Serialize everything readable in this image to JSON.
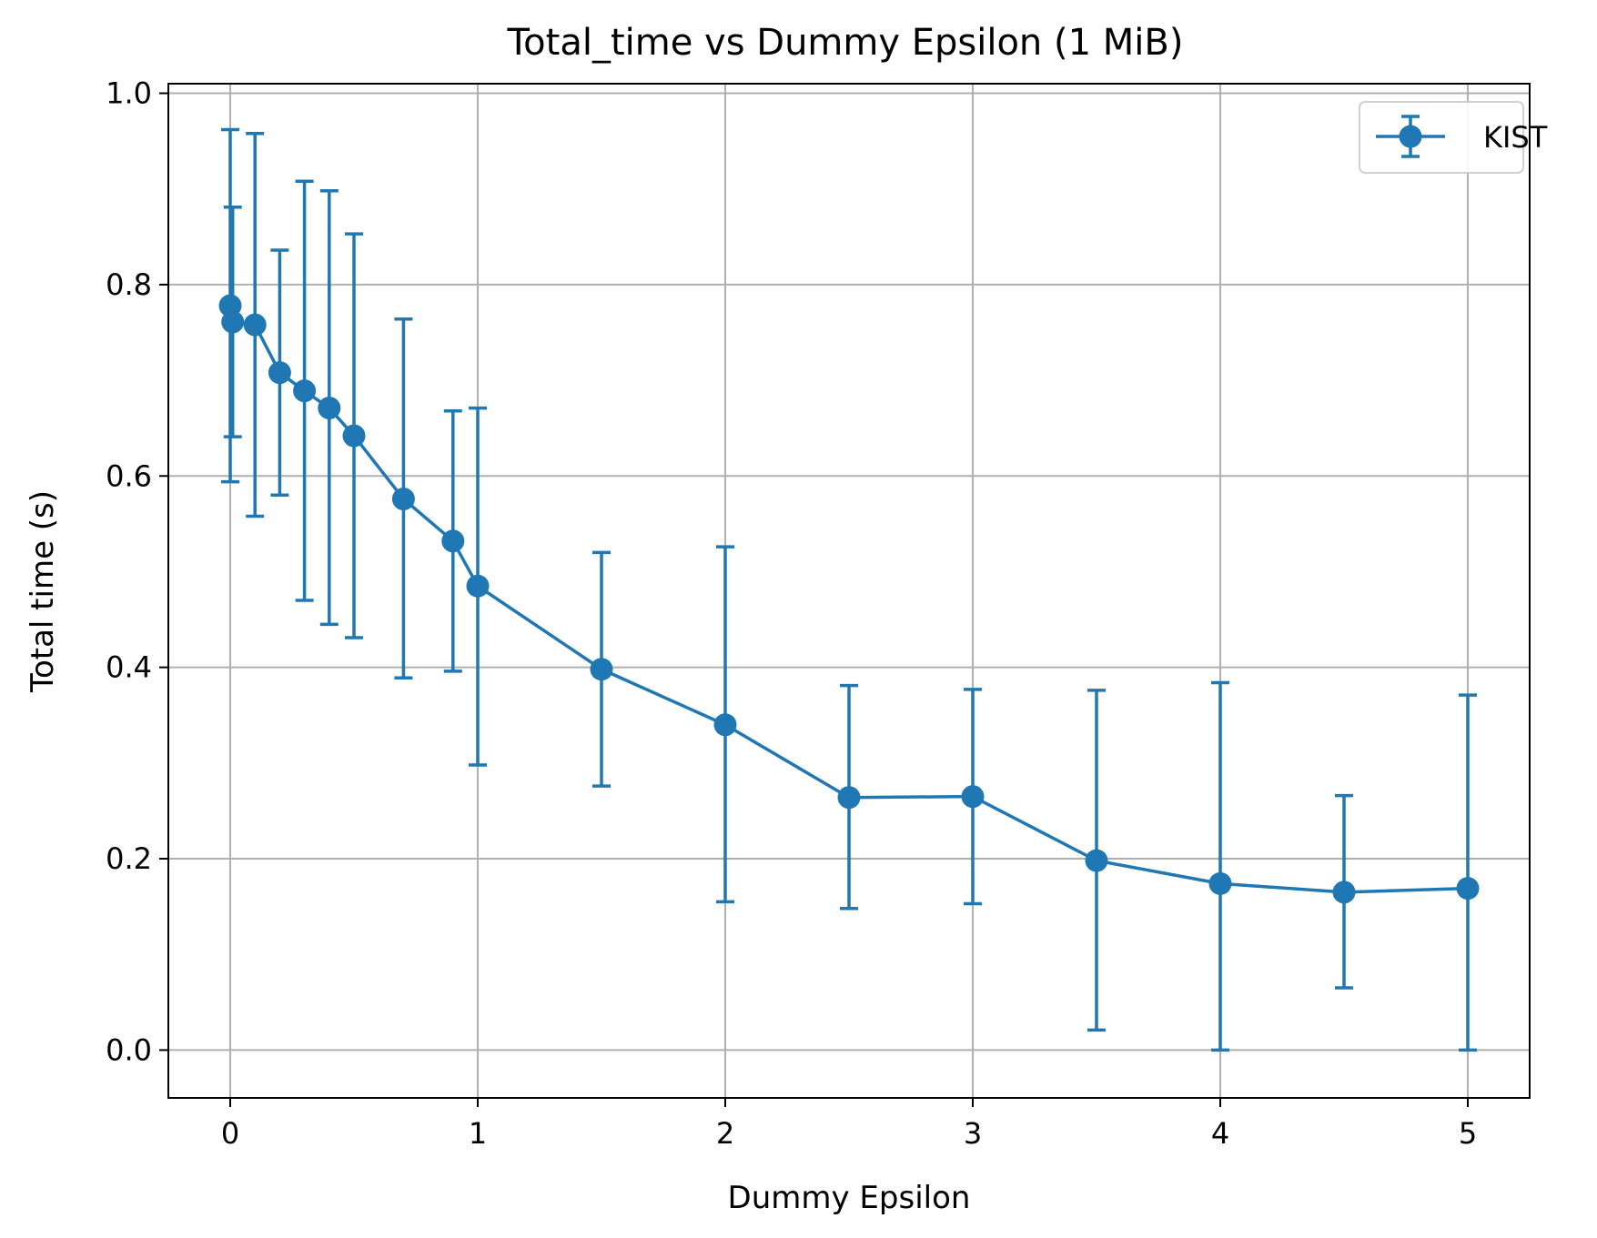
{
  "chart_data": {
    "type": "line",
    "title": "Total_time vs Dummy Epsilon (1 MiB)",
    "xlabel": "Dummy Epsilon",
    "ylabel": "Total time (s)",
    "xlim": [
      -0.25,
      5.25
    ],
    "ylim": [
      -0.05,
      1.01
    ],
    "xticks": [
      0,
      1,
      2,
      3,
      4,
      5
    ],
    "xtick_labels": [
      "0",
      "1",
      "2",
      "3",
      "4",
      "5"
    ],
    "yticks": [
      0.0,
      0.2,
      0.4,
      0.6,
      0.8,
      1.0
    ],
    "ytick_labels": [
      "0.0",
      "0.2",
      "0.4",
      "0.6",
      "0.8",
      "1.0"
    ],
    "grid": true,
    "legend_position": "top-right",
    "series": [
      {
        "name": "KIST",
        "color": "#1f77b4",
        "marker": "circle",
        "error_bars": true,
        "x": [
          0.0,
          0.01,
          0.1,
          0.2,
          0.3,
          0.4,
          0.5,
          0.7,
          0.9,
          1.0,
          1.5,
          2.0,
          2.5,
          3.0,
          3.5,
          4.0,
          4.5,
          5.0
        ],
        "y": [
          0.778,
          0.761,
          0.758,
          0.708,
          0.689,
          0.671,
          0.642,
          0.576,
          0.532,
          0.485,
          0.398,
          0.34,
          0.264,
          0.265,
          0.198,
          0.174,
          0.165,
          0.169
        ],
        "y_lower": [
          0.594,
          0.641,
          0.558,
          0.58,
          0.47,
          0.445,
          0.431,
          0.389,
          0.396,
          0.298,
          0.276,
          0.155,
          0.148,
          0.153,
          0.021,
          0.0,
          0.065,
          0.0
        ],
        "y_upper": [
          0.962,
          0.881,
          0.958,
          0.836,
          0.908,
          0.898,
          0.853,
          0.764,
          0.668,
          0.671,
          0.52,
          0.526,
          0.381,
          0.377,
          0.376,
          0.384,
          0.266,
          0.371
        ]
      }
    ]
  }
}
